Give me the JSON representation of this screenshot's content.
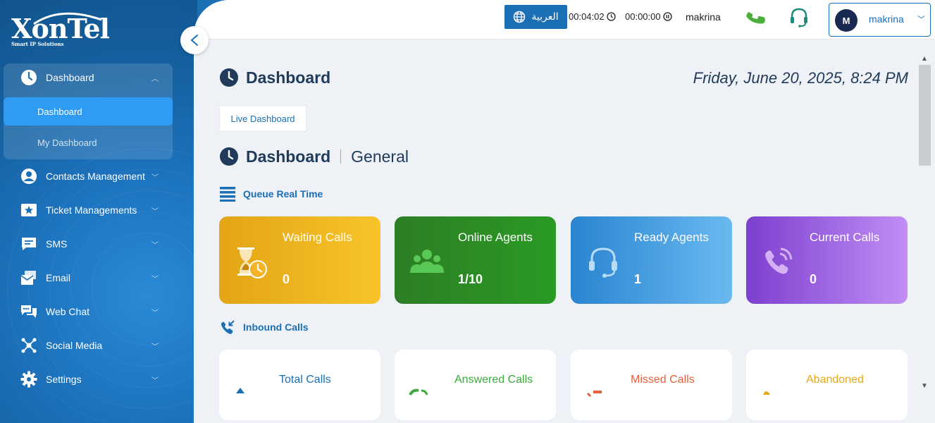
{
  "brand": {
    "name": "XonTel",
    "tagline": "Smart IP Solutions"
  },
  "sidebar": {
    "items": [
      {
        "label": "Dashboard",
        "icon": "clock-icon",
        "expanded": true
      },
      {
        "label": "Contacts Management",
        "icon": "user-circle-icon"
      },
      {
        "label": "Ticket Managements",
        "icon": "ticket-star-icon"
      },
      {
        "label": "SMS",
        "icon": "chat-bubble-icon"
      },
      {
        "label": "Email",
        "icon": "envelope-icon"
      },
      {
        "label": "Web Chat",
        "icon": "chat-bubbles-icon"
      },
      {
        "label": "Social Media",
        "icon": "network-icon"
      },
      {
        "label": "Settings",
        "icon": "gear-icon"
      }
    ],
    "subitems": [
      {
        "label": "Dashboard",
        "active": true
      },
      {
        "label": "My Dashboard",
        "active": false
      }
    ]
  },
  "topbar": {
    "language": "العربية",
    "timer_1": "00:04:02",
    "timer_2": "00:00:00",
    "username": "makrina",
    "user_initial": "M",
    "user_menu_name": "makrina"
  },
  "page": {
    "title": "Dashboard",
    "datetime": "Friday, June 20, 2025, 8:24 PM",
    "tab": "Live Dashboard",
    "section_title": "Dashboard",
    "section_sub": "General",
    "queue_label": "Queue Real Time",
    "inbound_label": "Inbound Calls"
  },
  "queue_cards": [
    {
      "title": "Waiting Calls",
      "value": "0",
      "color": "#f5b325",
      "icon": "hourglass-clock-icon"
    },
    {
      "title": "Online Agents",
      "value": "1/10",
      "color": "#2a8f24",
      "icon": "users-group-icon"
    },
    {
      "title": "Ready Agents",
      "value": "1",
      "color": "#3fa0e6",
      "icon": "headset-icon"
    },
    {
      "title": "Current Calls",
      "value": "0",
      "color": "#9a5fe0",
      "icon": "phone-ringing-icon"
    }
  ],
  "inbound_cards": [
    {
      "title": "Total Calls",
      "color": "#1a6fb5"
    },
    {
      "title": "Answered Calls",
      "color": "#3caa3c"
    },
    {
      "title": "Missed Calls",
      "color": "#e8603c"
    },
    {
      "title": "Abandoned",
      "color": "#e6a817"
    }
  ]
}
